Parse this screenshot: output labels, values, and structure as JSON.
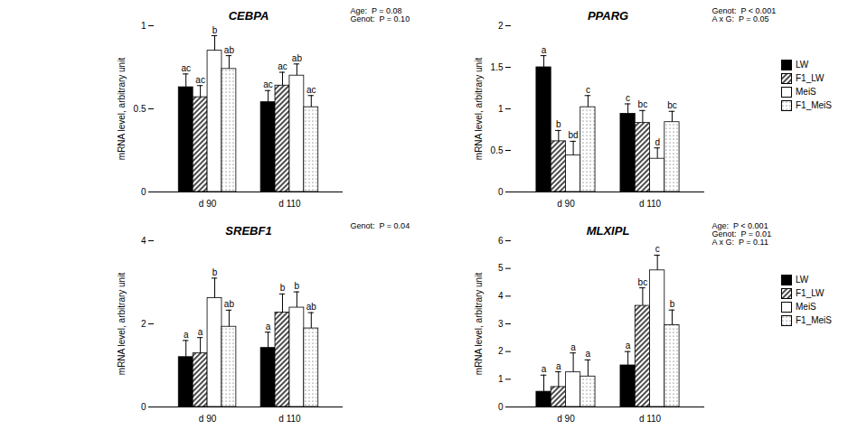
{
  "chart_data": [
    {
      "type": "bar",
      "title": "CEBPA",
      "annotations": [
        "Age:  P = 0.08",
        "Genot:  P = 0.10"
      ],
      "y_label": "mRNA level, arbitrary unit",
      "categories": [
        "d 90",
        "d 110"
      ],
      "ylim": [
        0,
        1
      ],
      "yticks": [
        0,
        0.5,
        1
      ],
      "series": [
        {
          "name": "LW",
          "color": "#000000",
          "values": [
            0.63,
            0.54
          ],
          "errors": [
            0.08,
            0.07
          ],
          "letters": [
            "ac",
            "ac"
          ]
        },
        {
          "name": "F1_LW",
          "color": "#ffffff",
          "values": [
            0.57,
            0.64
          ],
          "errors": [
            0.07,
            0.08
          ],
          "letters": [
            "ac",
            "ac"
          ]
        },
        {
          "name": "MeiS",
          "color": "#ffffff",
          "values": [
            0.85,
            0.7
          ],
          "errors": [
            0.09,
            0.07
          ],
          "letters": [
            "b",
            "ab"
          ]
        },
        {
          "name": "F1_MeiS",
          "color": "#ffffff",
          "values": [
            0.74,
            0.51
          ],
          "errors": [
            0.08,
            0.07
          ],
          "letters": [
            "ab",
            "ac"
          ]
        }
      ]
    },
    {
      "type": "bar",
      "title": "PPARG",
      "annotations": [
        "Genot:  P < 0.001",
        "A x G:  P = 0.05"
      ],
      "y_label": "mRNA level, arbitrary unit",
      "categories": [
        "d 90",
        "d 110"
      ],
      "ylim": [
        0,
        2
      ],
      "yticks": [
        0,
        0.5,
        1,
        1.5,
        2
      ],
      "legend": "right",
      "series": [
        {
          "name": "LW",
          "color": "#000000",
          "values": [
            1.5,
            0.94
          ],
          "errors": [
            0.14,
            0.12
          ],
          "letters": [
            "a",
            "c"
          ]
        },
        {
          "name": "F1_LW",
          "color": "#ffffff",
          "values": [
            0.61,
            0.83
          ],
          "errors": [
            0.13,
            0.15
          ],
          "letters": [
            "b",
            "bc"
          ]
        },
        {
          "name": "MeiS",
          "color": "#ffffff",
          "values": [
            0.44,
            0.4
          ],
          "errors": [
            0.17,
            0.13
          ],
          "letters": [
            "bd",
            "d"
          ]
        },
        {
          "name": "F1_MeiS",
          "color": "#ffffff",
          "values": [
            1.02,
            0.84
          ],
          "errors": [
            0.14,
            0.13
          ],
          "letters": [
            "c",
            "bc"
          ]
        }
      ]
    },
    {
      "type": "bar",
      "title": "SREBF1",
      "annotations": [
        "Genot:  P = 0.04"
      ],
      "y_label": "mRNA level, arbitrary unit",
      "categories": [
        "d 90",
        "d 110"
      ],
      "ylim": [
        0,
        4
      ],
      "yticks": [
        0,
        2,
        4
      ],
      "series": [
        {
          "name": "LW",
          "color": "#000000",
          "values": [
            1.2,
            1.42
          ],
          "errors": [
            0.4,
            0.38
          ],
          "letters": [
            "a",
            "a"
          ]
        },
        {
          "name": "F1_LW",
          "color": "#ffffff",
          "values": [
            1.29,
            2.27
          ],
          "errors": [
            0.38,
            0.45
          ],
          "letters": [
            "a",
            "b"
          ]
        },
        {
          "name": "MeiS",
          "color": "#ffffff",
          "values": [
            2.62,
            2.39
          ],
          "errors": [
            0.48,
            0.38
          ],
          "letters": [
            "b",
            "b"
          ]
        },
        {
          "name": "F1_MeiS",
          "color": "#ffffff",
          "values": [
            1.93,
            1.89
          ],
          "errors": [
            0.4,
            0.38
          ],
          "letters": [
            "ab",
            "ab"
          ]
        }
      ]
    },
    {
      "type": "bar",
      "title": "MLXIPL",
      "annotations": [
        "Age:  P < 0.001",
        "Genot:  P = 0.01",
        "A x G:  P = 0.11"
      ],
      "y_label": "mRNA level, arbitrary unit",
      "categories": [
        "d 90",
        "d 110"
      ],
      "ylim": [
        0,
        6
      ],
      "yticks": [
        0,
        1,
        2,
        3,
        4,
        5,
        6
      ],
      "legend": "right",
      "series": [
        {
          "name": "LW",
          "color": "#000000",
          "values": [
            0.55,
            1.5
          ],
          "errors": [
            0.6,
            0.5
          ],
          "letters": [
            "a",
            "a"
          ]
        },
        {
          "name": "F1_LW",
          "color": "#ffffff",
          "values": [
            0.72,
            3.65
          ],
          "errors": [
            0.55,
            0.65
          ],
          "letters": [
            "a",
            "bc"
          ]
        },
        {
          "name": "MeiS",
          "color": "#ffffff",
          "values": [
            1.25,
            4.93
          ],
          "errors": [
            0.7,
            0.55
          ],
          "letters": [
            "a",
            "c"
          ]
        },
        {
          "name": "F1_MeiS",
          "color": "#ffffff",
          "values": [
            1.1,
            2.95
          ],
          "errors": [
            0.6,
            0.55
          ],
          "letters": [
            "a",
            "b"
          ]
        }
      ]
    }
  ]
}
